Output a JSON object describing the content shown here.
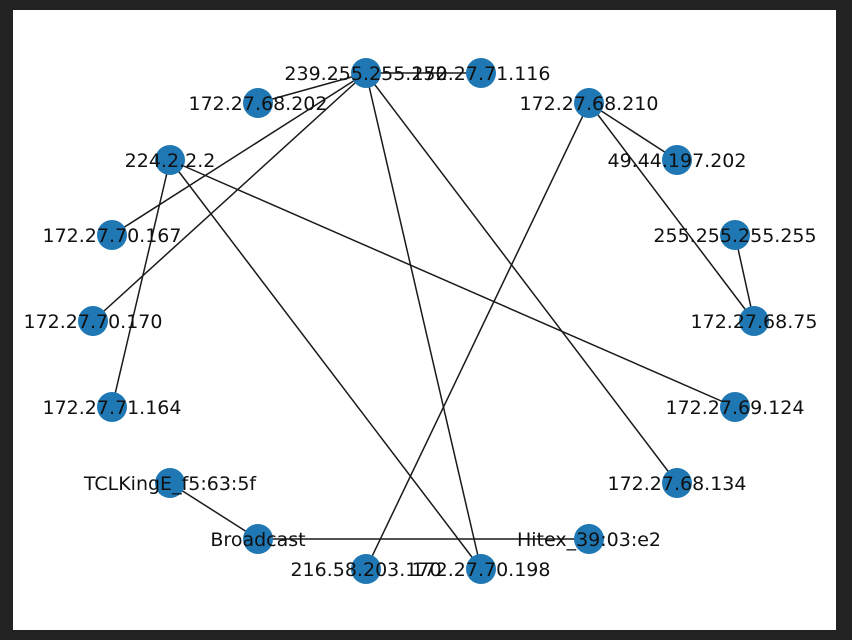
{
  "graph": {
    "node_color": "#1f77b4",
    "edge_color": "#1a1a1a",
    "background": "#ffffff",
    "nodes": [
      {
        "id": "239.255.255.250",
        "label": "239.255.255.250"
      },
      {
        "id": "172.27.71.116",
        "label": "172.27.71.116"
      },
      {
        "id": "172.27.68.202",
        "label": "172.27.68.202"
      },
      {
        "id": "172.27.68.210",
        "label": "172.27.68.210"
      },
      {
        "id": "224.2.2.2",
        "label": "224.2.2.2"
      },
      {
        "id": "49.44.197.202",
        "label": "49.44.197.202"
      },
      {
        "id": "172.27.70.167",
        "label": "172.27.70.167"
      },
      {
        "id": "255.255.255.255",
        "label": "255.255.255.255"
      },
      {
        "id": "172.27.70.170",
        "label": "172.27.70.170"
      },
      {
        "id": "172.27.68.75",
        "label": "172.27.68.75"
      },
      {
        "id": "172.27.71.164",
        "label": "172.27.71.164"
      },
      {
        "id": "172.27.69.124",
        "label": "172.27.69.124"
      },
      {
        "id": "TCLKingE_f5:63:5f",
        "label": "TCLKingE_f5:63:5f"
      },
      {
        "id": "172.27.68.134",
        "label": "172.27.68.134"
      },
      {
        "id": "Broadcast",
        "label": "Broadcast"
      },
      {
        "id": "Hitex_39:03:e2",
        "label": "Hitex_39:03:e2"
      },
      {
        "id": "216.58.203.170",
        "label": "216.58.203.170"
      },
      {
        "id": "172.27.70.198",
        "label": "172.27.70.198"
      }
    ],
    "edges": [
      [
        "239.255.255.250",
        "172.27.71.116"
      ],
      [
        "239.255.255.250",
        "172.27.68.202"
      ],
      [
        "239.255.255.250",
        "172.27.70.167"
      ],
      [
        "239.255.255.250",
        "172.27.70.170"
      ],
      [
        "239.255.255.250",
        "172.27.70.198"
      ],
      [
        "239.255.255.250",
        "172.27.68.134"
      ],
      [
        "224.2.2.2",
        "172.27.71.164"
      ],
      [
        "224.2.2.2",
        "172.27.70.198"
      ],
      [
        "224.2.2.2",
        "172.27.69.124"
      ],
      [
        "172.27.68.210",
        "49.44.197.202"
      ],
      [
        "172.27.68.210",
        "172.27.68.75"
      ],
      [
        "172.27.68.210",
        "216.58.203.170"
      ],
      [
        "255.255.255.255",
        "172.27.68.75"
      ],
      [
        "TCLKingE_f5:63:5f",
        "Broadcast"
      ],
      [
        "Broadcast",
        "Hitex_39:03:e2"
      ]
    ]
  }
}
